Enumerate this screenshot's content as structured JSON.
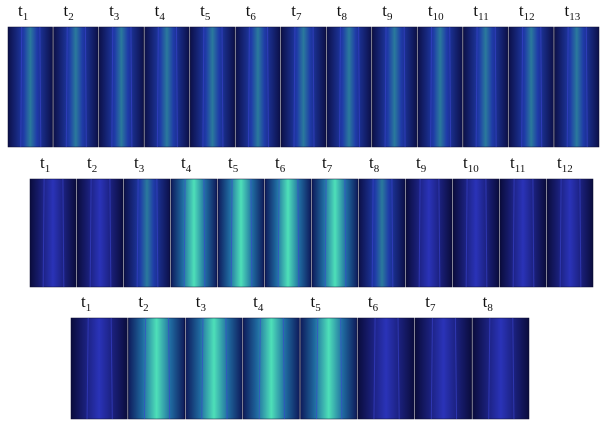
{
  "panels": [
    {
      "frames": [
        {
          "letter": "t",
          "index": "1"
        },
        {
          "letter": "t",
          "index": "2"
        },
        {
          "letter": "t",
          "index": "3"
        },
        {
          "letter": "t",
          "index": "4"
        },
        {
          "letter": "t",
          "index": "5"
        },
        {
          "letter": "t",
          "index": "6"
        },
        {
          "letter": "t",
          "index": "7"
        },
        {
          "letter": "t",
          "index": "8"
        },
        {
          "letter": "t",
          "index": "9"
        },
        {
          "letter": "t",
          "index": "10"
        },
        {
          "letter": "t",
          "index": "11"
        },
        {
          "letter": "t",
          "index": "12"
        },
        {
          "letter": "t",
          "index": "13"
        }
      ]
    },
    {
      "frames": [
        {
          "letter": "t",
          "index": "1"
        },
        {
          "letter": "t",
          "index": "2"
        },
        {
          "letter": "t",
          "index": "3"
        },
        {
          "letter": "t",
          "index": "4"
        },
        {
          "letter": "t",
          "index": "5"
        },
        {
          "letter": "t",
          "index": "6"
        },
        {
          "letter": "t",
          "index": "7"
        },
        {
          "letter": "t",
          "index": "8"
        },
        {
          "letter": "t",
          "index": "9"
        },
        {
          "letter": "t",
          "index": "10"
        },
        {
          "letter": "t",
          "index": "11"
        },
        {
          "letter": "t",
          "index": "12"
        }
      ]
    },
    {
      "frames": [
        {
          "letter": "t",
          "index": "1"
        },
        {
          "letter": "t",
          "index": "2"
        },
        {
          "letter": "t",
          "index": "3"
        },
        {
          "letter": "t",
          "index": "4"
        },
        {
          "letter": "t",
          "index": "5"
        },
        {
          "letter": "t",
          "index": "6"
        },
        {
          "letter": "t",
          "index": "7"
        },
        {
          "letter": "t",
          "index": "8"
        }
      ]
    }
  ]
}
